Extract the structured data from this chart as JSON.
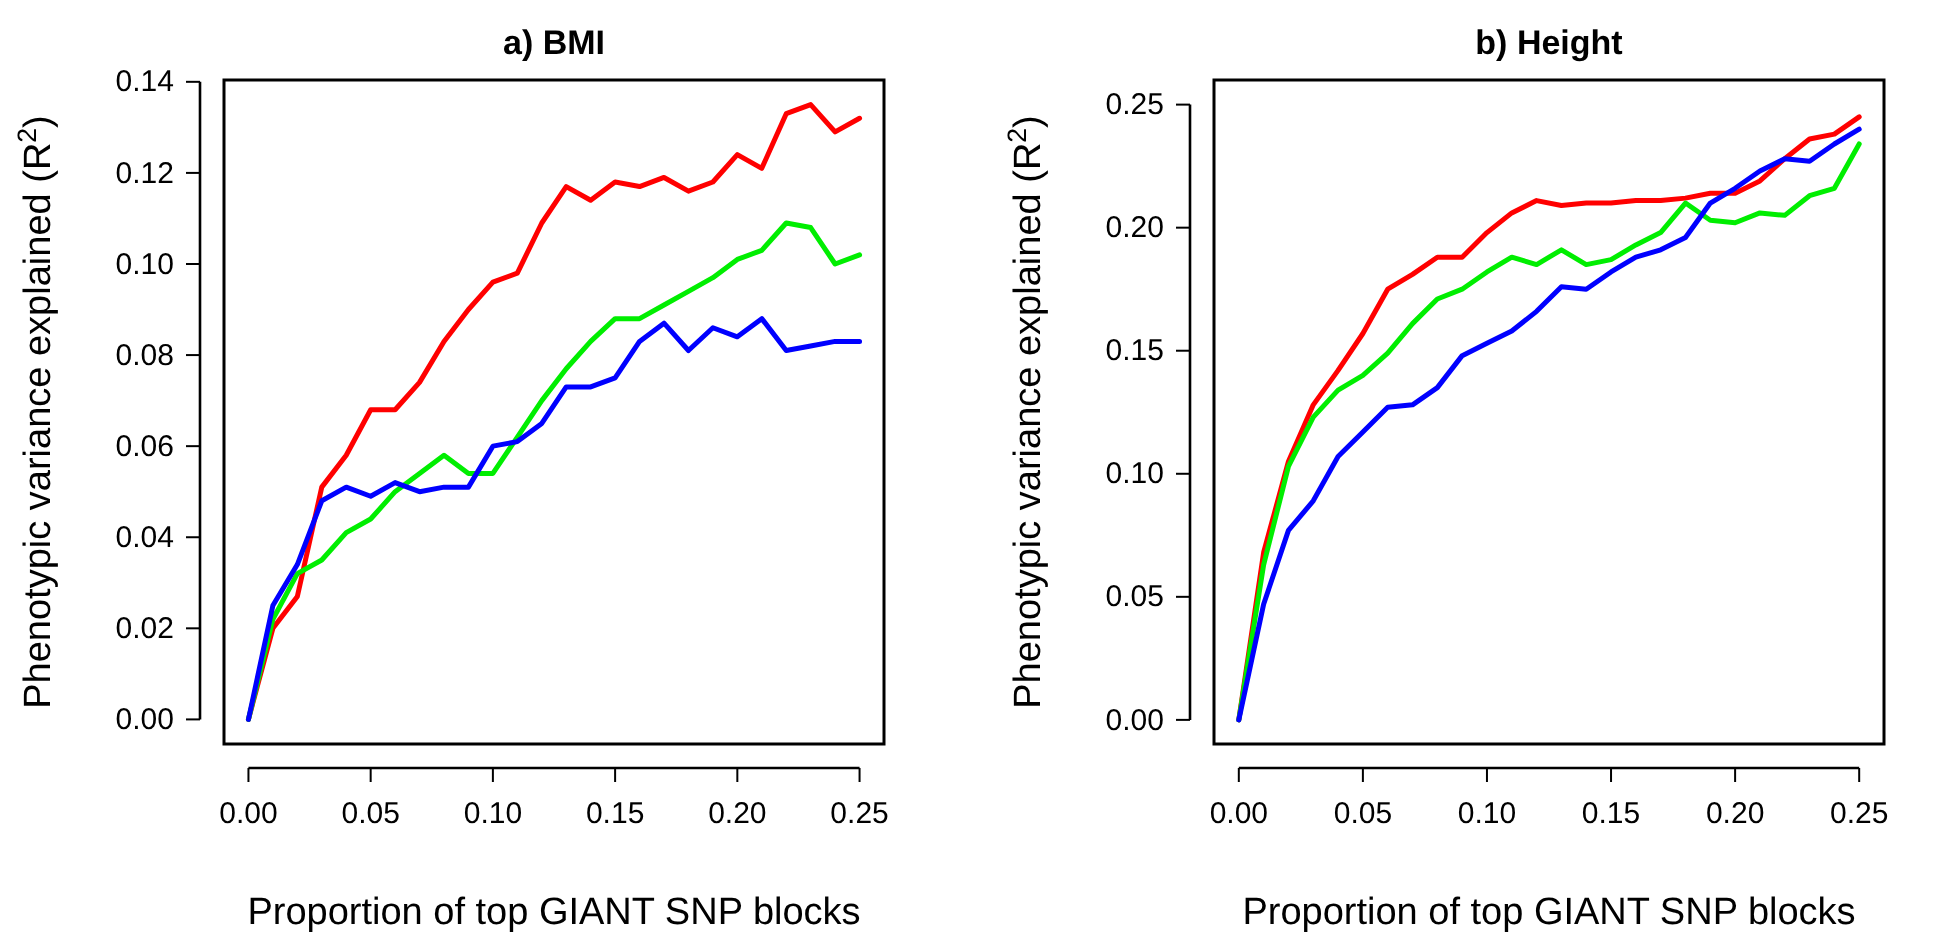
{
  "chart_data": [
    {
      "type": "line",
      "title": "a)  BMI",
      "xlabel": "Proportion of top GIANT SNP blocks",
      "ylabel": "Phenotypic variance explained (R$^{2}$)",
      "x": [
        0,
        0.01,
        0.02,
        0.03,
        0.04,
        0.05,
        0.06,
        0.07,
        0.08,
        0.09,
        0.1,
        0.11,
        0.12,
        0.13,
        0.14,
        0.15,
        0.16,
        0.17,
        0.18,
        0.19,
        0.2,
        0.21,
        0.22,
        0.23,
        0.24,
        0.25
      ],
      "xlim": [
        -0.01,
        0.26
      ],
      "xticks": [
        {
          "value": 0,
          "label": "0.00"
        },
        {
          "value": 0.05,
          "label": "0.05"
        },
        {
          "value": 0.1,
          "label": "0.10"
        },
        {
          "value": 0.15,
          "label": "0.15"
        },
        {
          "value": 0.2,
          "label": "0.20"
        },
        {
          "value": 0.25,
          "label": "0.25"
        }
      ],
      "ylim": [
        -0.0054,
        0.1404
      ],
      "yticks": [
        {
          "value": 0,
          "label": "0.00"
        },
        {
          "value": 0.02,
          "label": "0.02"
        },
        {
          "value": 0.04,
          "label": "0.04"
        },
        {
          "value": 0.06,
          "label": "0.06"
        },
        {
          "value": 0.08,
          "label": "0.08"
        },
        {
          "value": 0.1,
          "label": "0.10"
        },
        {
          "value": 0.12,
          "label": "0.12"
        },
        {
          "value": 0.14,
          "label": "0.14"
        }
      ],
      "grid": false,
      "series": [
        {
          "color": "#ff0000",
          "values": [
            0,
            0.02,
            0.027,
            0.051,
            0.058,
            0.068,
            0.068,
            0.074,
            0.083,
            0.09,
            0.096,
            0.098,
            0.109,
            0.117,
            0.114,
            0.118,
            0.117,
            0.119,
            0.116,
            0.118,
            0.124,
            0.121,
            0.133,
            0.135,
            0.129,
            0.132
          ]
        },
        {
          "color": "#00ee00",
          "values": [
            0,
            0.022,
            0.032,
            0.035,
            0.041,
            0.044,
            0.05,
            0.054,
            0.058,
            0.054,
            0.054,
            0.062,
            0.07,
            0.077,
            0.083,
            0.088,
            0.088,
            0.091,
            0.094,
            0.097,
            0.101,
            0.103,
            0.109,
            0.108,
            0.1,
            0.102
          ]
        },
        {
          "color": "#0000ff",
          "values": [
            0,
            0.025,
            0.034,
            0.048,
            0.051,
            0.049,
            0.052,
            0.05,
            0.051,
            0.051,
            0.06,
            0.061,
            0.065,
            0.073,
            0.073,
            0.075,
            0.083,
            0.087,
            0.081,
            0.086,
            0.084,
            0.088,
            0.081,
            0.082,
            0.083,
            0.083
          ]
        }
      ]
    },
    {
      "type": "line",
      "title": "b)  Height",
      "xlabel": "Proportion of top GIANT SNP blocks",
      "ylabel": "Phenotypic variance explained (R$^{2}$)",
      "x": [
        0,
        0.01,
        0.02,
        0.03,
        0.04,
        0.05,
        0.06,
        0.07,
        0.08,
        0.09,
        0.1,
        0.11,
        0.12,
        0.13,
        0.14,
        0.15,
        0.16,
        0.17,
        0.18,
        0.19,
        0.2,
        0.21,
        0.22,
        0.23,
        0.24,
        0.25
      ],
      "xlim": [
        -0.01,
        0.26
      ],
      "xticks": [
        {
          "value": 0,
          "label": "0.00"
        },
        {
          "value": 0.05,
          "label": "0.05"
        },
        {
          "value": 0.1,
          "label": "0.10"
        },
        {
          "value": 0.15,
          "label": "0.15"
        },
        {
          "value": 0.2,
          "label": "0.20"
        },
        {
          "value": 0.25,
          "label": "0.25"
        }
      ],
      "ylim": [
        -0.0098,
        0.26
      ],
      "yticks": [
        {
          "value": 0,
          "label": "0.00"
        },
        {
          "value": 0.05,
          "label": "0.05"
        },
        {
          "value": 0.1,
          "label": "0.10"
        },
        {
          "value": 0.15,
          "label": "0.15"
        },
        {
          "value": 0.2,
          "label": "0.20"
        },
        {
          "value": 0.25,
          "label": "0.25"
        }
      ],
      "grid": false,
      "series": [
        {
          "color": "#ff0000",
          "values": [
            0,
            0.068,
            0.105,
            0.128,
            0.142,
            0.157,
            0.175,
            0.181,
            0.188,
            0.188,
            0.198,
            0.206,
            0.211,
            0.209,
            0.21,
            0.21,
            0.211,
            0.211,
            0.212,
            0.214,
            0.214,
            0.219,
            0.228,
            0.236,
            0.238,
            0.245
          ]
        },
        {
          "color": "#00ee00",
          "values": [
            0,
            0.063,
            0.103,
            0.123,
            0.134,
            0.14,
            0.149,
            0.161,
            0.171,
            0.175,
            0.182,
            0.188,
            0.185,
            0.191,
            0.185,
            0.187,
            0.193,
            0.198,
            0.21,
            0.203,
            0.202,
            0.206,
            0.205,
            0.213,
            0.216,
            0.234
          ]
        },
        {
          "color": "#0000ff",
          "values": [
            0,
            0.047,
            0.077,
            0.089,
            0.107,
            0.117,
            0.127,
            0.128,
            0.135,
            0.148,
            0.153,
            0.158,
            0.166,
            0.176,
            0.175,
            0.182,
            0.188,
            0.191,
            0.196,
            0.21,
            0.216,
            0.223,
            0.228,
            0.227,
            0.234,
            0.24
          ]
        }
      ]
    }
  ]
}
